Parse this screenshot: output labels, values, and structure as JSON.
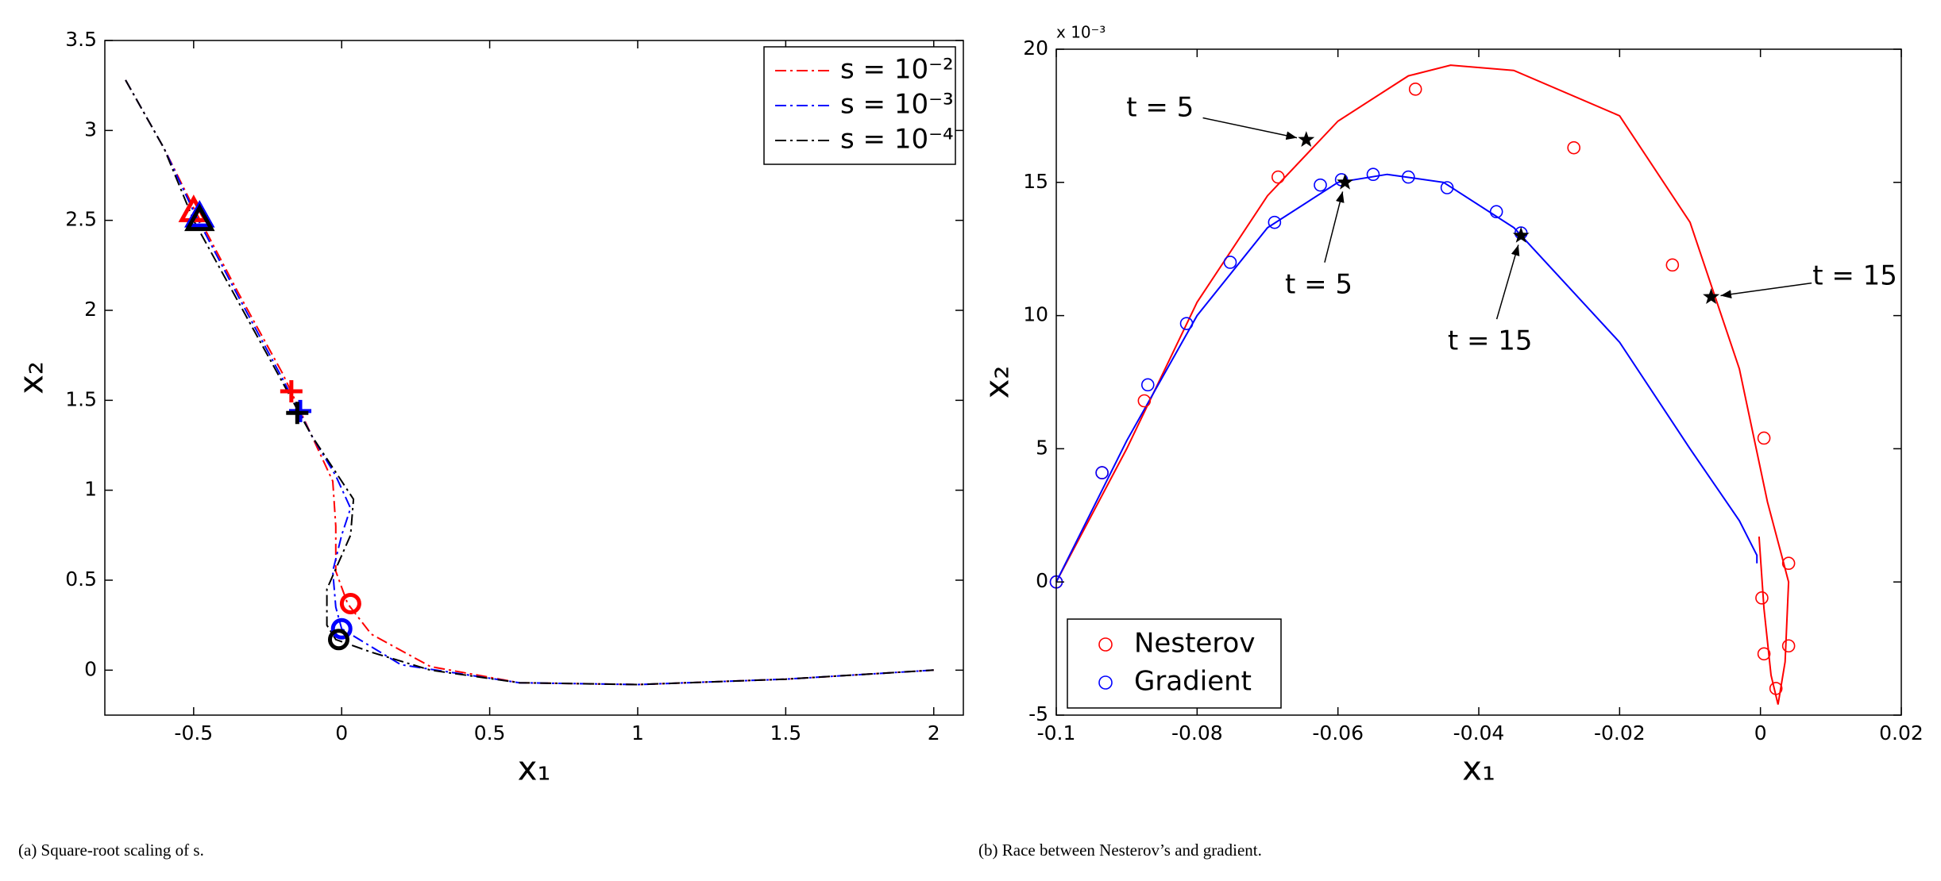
{
  "chart_data": [
    {
      "type": "line",
      "xlabel": "x₁",
      "ylabel": "x₂",
      "caption": "(a) Square-root scaling of s.",
      "xlim": [
        -0.8,
        2.1
      ],
      "xticks": [
        -0.5,
        0,
        0.5,
        1,
        1.5,
        2
      ],
      "ylim": [
        -0.25,
        3.5
      ],
      "yticks": [
        0,
        0.5,
        1,
        1.5,
        2,
        2.5,
        3,
        3.5
      ],
      "legend": "upper right",
      "legend_symbol": "line",
      "marker_shapes": [
        "triangle",
        "plus",
        "circle"
      ],
      "series": [
        {
          "name": "s = 10⁻²",
          "color": "#ff0000",
          "x": [
            -0.73,
            -0.6,
            -0.5,
            -0.35,
            -0.2,
            -0.1,
            -0.03,
            -0.02,
            -0.02,
            0.02,
            0.1,
            0.3,
            0.6,
            1.0,
            1.5,
            2.0
          ],
          "values": [
            3.28,
            2.9,
            2.57,
            2.1,
            1.65,
            1.3,
            1.05,
            0.8,
            0.55,
            0.37,
            0.2,
            0.02,
            -0.07,
            -0.08,
            -0.05,
            0
          ],
          "marker_x": [
            -0.5,
            -0.17,
            0.03
          ],
          "marker_values": [
            2.55,
            1.55,
            0.37
          ]
        },
        {
          "name": "s = 10⁻³",
          "color": "#0000ff",
          "x": [
            -0.73,
            -0.6,
            -0.5,
            -0.35,
            -0.2,
            -0.1,
            -0.02,
            0.03,
            0.0,
            -0.03,
            -0.02,
            0.0,
            0.2,
            0.6,
            1.0,
            1.5,
            2.0
          ],
          "values": [
            3.28,
            2.9,
            2.55,
            2.08,
            1.62,
            1.3,
            1.08,
            0.9,
            0.75,
            0.55,
            0.35,
            0.23,
            0.03,
            -0.07,
            -0.08,
            -0.05,
            0
          ],
          "marker_x": [
            -0.48,
            -0.14,
            0.0
          ],
          "marker_values": [
            2.52,
            1.44,
            0.23
          ]
        },
        {
          "name": "s = 10⁻⁴",
          "color": "#000000",
          "x": [
            -0.73,
            -0.6,
            -0.5,
            -0.35,
            -0.2,
            -0.1,
            -0.02,
            0.04,
            0.03,
            -0.05,
            -0.05,
            -0.02,
            0.1,
            0.3,
            0.6,
            1.0,
            1.5,
            2.0
          ],
          "values": [
            3.28,
            2.9,
            2.5,
            2.05,
            1.6,
            1.3,
            1.1,
            0.95,
            0.75,
            0.45,
            0.25,
            0.17,
            0.1,
            0.0,
            -0.07,
            -0.08,
            -0.05,
            0
          ],
          "marker_x": [
            -0.48,
            -0.15,
            -0.01
          ],
          "marker_values": [
            2.5,
            1.43,
            0.17
          ]
        }
      ]
    },
    {
      "type": "line",
      "xlabel": "x₁",
      "ylabel": "x₂",
      "caption": "(b) Race between Nesterov’s and gradient.",
      "y_multiplier": "x 10⁻³",
      "xlim": [
        -0.1,
        0.02
      ],
      "xticks": [
        -0.1,
        -0.08,
        -0.06,
        -0.04,
        -0.02,
        0,
        0.02
      ],
      "ylim": [
        -5,
        20
      ],
      "yticks": [
        -5,
        0,
        5,
        10,
        15,
        20
      ],
      "legend": "lower left",
      "legend_symbol": "marker",
      "series": [
        {
          "name": "Nesterov",
          "color": "#ff0000",
          "x": [
            -0.1,
            -0.09,
            -0.08,
            -0.07,
            -0.06,
            -0.05,
            -0.044,
            -0.035,
            -0.02,
            -0.01,
            -0.003,
            0.001,
            0.003,
            0.004,
            0.0035,
            0.0025,
            0.0015,
            0.0005,
            -0.0002
          ],
          "values": [
            0,
            5,
            10.5,
            14.5,
            17.3,
            19,
            19.4,
            19.2,
            17.5,
            13.5,
            8,
            3,
            1,
            0,
            -3,
            -4.6,
            -3.5,
            -1,
            1.7
          ],
          "marker_x": [
            -0.1,
            -0.0935,
            -0.0875,
            -0.0685,
            -0.049,
            -0.0265,
            -0.0125,
            0.0005,
            0.004,
            0.0002,
            0.0005,
            0.0022,
            0.004
          ],
          "marker_values": [
            0,
            4.1,
            6.8,
            15.2,
            18.5,
            16.3,
            11.9,
            5.4,
            0.7,
            -0.6,
            -2.7,
            -4,
            -2.4
          ]
        },
        {
          "name": "Gradient",
          "color": "#0000ff",
          "x": [
            -0.1,
            -0.09,
            -0.08,
            -0.07,
            -0.06,
            -0.053,
            -0.045,
            -0.035,
            -0.02,
            -0.01,
            -0.003,
            -0.0005,
            -0.0005
          ],
          "values": [
            0,
            5.3,
            10,
            13.3,
            15,
            15.3,
            15,
            13.3,
            9,
            5,
            2.3,
            1,
            0.7
          ],
          "marker_x": [
            -0.1,
            -0.0935,
            -0.087,
            -0.0815,
            -0.0753,
            -0.069,
            -0.0625,
            -0.0595,
            -0.055,
            -0.05,
            -0.0445,
            -0.0375,
            -0.034
          ],
          "marker_values": [
            0,
            4.1,
            7.4,
            9.7,
            12,
            13.5,
            14.9,
            15.1,
            15.3,
            15.2,
            14.8,
            13.9,
            13.1
          ]
        }
      ],
      "annotations": [
        {
          "text": "t = 5",
          "x": -0.0645,
          "y": 16.6
        },
        {
          "text": "t = 5",
          "x": -0.059,
          "y": 15.0
        },
        {
          "text": "t = 15",
          "x": -0.034,
          "y": 13.0
        },
        {
          "text": "t = 15",
          "x": -0.007,
          "y": 10.7
        }
      ]
    }
  ]
}
